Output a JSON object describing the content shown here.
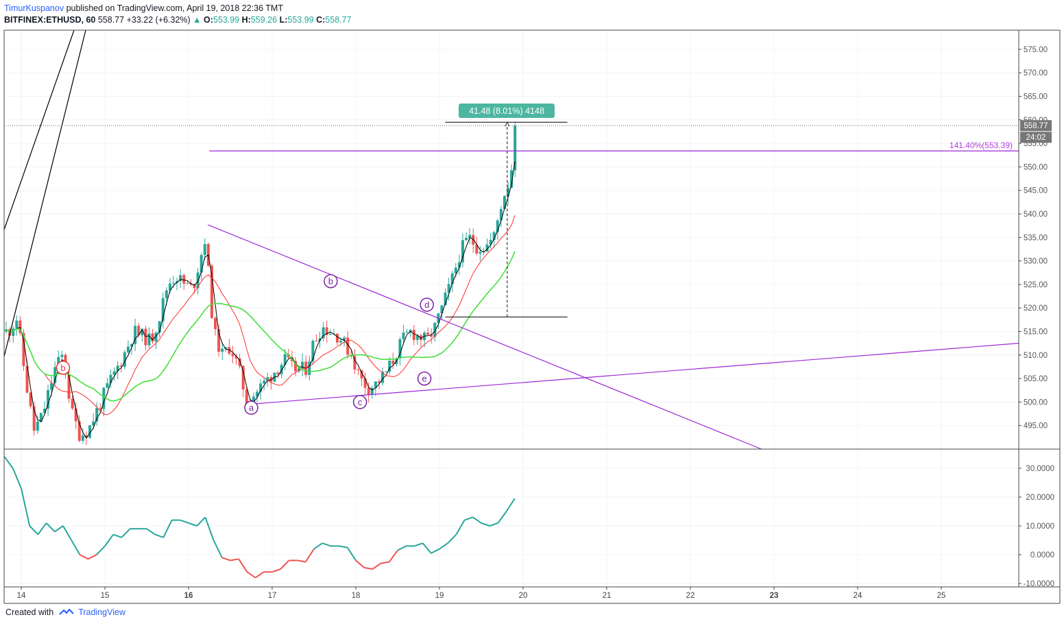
{
  "header": {
    "author": "TimurKuspanov",
    "published_text": "published on TradingView.com, April 19, 2018 22:36 TMT",
    "symbol": "BITFINEX:ETHUSD, 60",
    "last": "558.77",
    "change": "+33.22 (+6.32%)",
    "o_label": "O:",
    "o_value": "553.99",
    "h_label": "H:",
    "h_value": "559.26",
    "l_label": "L:",
    "l_value": "553.99",
    "c_label": "C:",
    "c_value": "558.77"
  },
  "footer": {
    "created_with": "Created with",
    "brand": "TradingView"
  },
  "colors": {
    "up": "#26a69a",
    "down": "#ef5350",
    "ma_fast": "#000000",
    "ma_mid": "#ff2a2a",
    "ma_slow": "#43e03d",
    "purple": "#9c27b0",
    "osc_up": "#26a69a",
    "osc_down": "#ef5350"
  },
  "annotations": {
    "measure_label": "41.48 (8.01%) 4148",
    "fib_label": "141.40%(553.39)",
    "price_badge": "558.77",
    "time_badge": "24:02",
    "waves": [
      {
        "text": "b",
        "color": "red"
      },
      {
        "text": "a",
        "color": "purple"
      },
      {
        "text": "b",
        "color": "purple"
      },
      {
        "text": "c",
        "color": "purple"
      },
      {
        "text": "d",
        "color": "purple"
      },
      {
        "text": "e",
        "color": "purple"
      }
    ]
  },
  "chart_data": [
    {
      "type": "candlestick",
      "title": "BITFINEX:ETHUSD, 60",
      "x_ticks": [
        "14",
        "15",
        "16",
        "17",
        "18",
        "19",
        "20",
        "21",
        "22",
        "23",
        "24",
        "25"
      ],
      "y_ticks": [
        "495.00",
        "500.00",
        "505.00",
        "510.00",
        "515.00",
        "520.00",
        "525.00",
        "530.00",
        "535.00",
        "540.00",
        "545.00",
        "550.00",
        "555.00",
        "560.00",
        "565.00",
        "570.00",
        "575.00"
      ],
      "ylim": [
        490.0,
        578.0
      ],
      "last_price": 558.77,
      "fib_level": {
        "label": "141.40%",
        "price": 553.39
      },
      "measure": {
        "from": 518.1,
        "to": 559.5,
        "change": 41.48,
        "percent": 8.01
      },
      "close_path": [
        {
          "day": 13.85,
          "close": 515
        },
        {
          "day": 13.95,
          "close": 518
        },
        {
          "day": 14.05,
          "close": 505
        },
        {
          "day": 14.15,
          "close": 494
        },
        {
          "day": 14.25,
          "close": 497
        },
        {
          "day": 14.4,
          "close": 507
        },
        {
          "day": 14.5,
          "close": 510
        },
        {
          "day": 14.6,
          "close": 498
        },
        {
          "day": 14.7,
          "close": 493
        },
        {
          "day": 14.8,
          "close": 494
        },
        {
          "day": 14.95,
          "close": 500
        },
        {
          "day": 15.05,
          "close": 504
        },
        {
          "day": 15.2,
          "close": 509
        },
        {
          "day": 15.35,
          "close": 515
        },
        {
          "day": 15.45,
          "close": 514
        },
        {
          "day": 15.55,
          "close": 513
        },
        {
          "day": 15.65,
          "close": 518
        },
        {
          "day": 15.75,
          "close": 525
        },
        {
          "day": 15.85,
          "close": 527
        },
        {
          "day": 15.95,
          "close": 525
        },
        {
          "day": 16.05,
          "close": 524
        },
        {
          "day": 16.2,
          "close": 535
        },
        {
          "day": 16.3,
          "close": 515
        },
        {
          "day": 16.4,
          "close": 510
        },
        {
          "day": 16.5,
          "close": 512
        },
        {
          "day": 16.6,
          "close": 507
        },
        {
          "day": 16.7,
          "close": 500
        },
        {
          "day": 16.8,
          "close": 502
        },
        {
          "day": 16.9,
          "close": 504
        },
        {
          "day": 17.05,
          "close": 507
        },
        {
          "day": 17.15,
          "close": 509
        },
        {
          "day": 17.25,
          "close": 507
        },
        {
          "day": 17.4,
          "close": 507
        },
        {
          "day": 17.5,
          "close": 513
        },
        {
          "day": 17.6,
          "close": 516
        },
        {
          "day": 17.7,
          "close": 515
        },
        {
          "day": 17.8,
          "close": 514
        },
        {
          "day": 17.95,
          "close": 510
        },
        {
          "day": 18.05,
          "close": 505
        },
        {
          "day": 18.15,
          "close": 503
        },
        {
          "day": 18.25,
          "close": 504
        },
        {
          "day": 18.35,
          "close": 506
        },
        {
          "day": 18.45,
          "close": 509
        },
        {
          "day": 18.55,
          "close": 513
        },
        {
          "day": 18.65,
          "close": 515
        },
        {
          "day": 18.75,
          "close": 514
        },
        {
          "day": 18.85,
          "close": 513
        },
        {
          "day": 18.95,
          "close": 516
        },
        {
          "day": 19.05,
          "close": 521
        },
        {
          "day": 19.15,
          "close": 526
        },
        {
          "day": 19.25,
          "close": 532
        },
        {
          "day": 19.35,
          "close": 535
        },
        {
          "day": 19.45,
          "close": 533
        },
        {
          "day": 19.55,
          "close": 533
        },
        {
          "day": 19.65,
          "close": 535
        },
        {
          "day": 19.75,
          "close": 543
        },
        {
          "day": 19.85,
          "close": 548
        },
        {
          "day": 19.92,
          "close": 558.77
        }
      ],
      "moving_averages": [
        {
          "name": "",
          "color": "black"
        },
        {
          "name": "",
          "color": "red"
        },
        {
          "name": "",
          "color": "green"
        }
      ]
    },
    {
      "type": "line",
      "title": "",
      "y_ticks": [
        "30.0000",
        "20.0000",
        "10.0000",
        "0.0000",
        "-10.0000"
      ],
      "ylim": [
        -11.0,
        35.0
      ],
      "series": [
        {
          "name": "",
          "points": [
            {
              "day": 13.8,
              "value": 34
            },
            {
              "day": 13.9,
              "value": 30
            },
            {
              "day": 14.0,
              "value": 23
            },
            {
              "day": 14.1,
              "value": 10
            },
            {
              "day": 14.2,
              "value": 7
            },
            {
              "day": 14.3,
              "value": 11
            },
            {
              "day": 14.4,
              "value": 8
            },
            {
              "day": 14.5,
              "value": 10
            },
            {
              "day": 14.6,
              "value": 5
            },
            {
              "day": 14.7,
              "value": 0
            },
            {
              "day": 14.8,
              "value": -1.5
            },
            {
              "day": 14.9,
              "value": 0
            },
            {
              "day": 15.0,
              "value": 3
            },
            {
              "day": 15.1,
              "value": 7
            },
            {
              "day": 15.2,
              "value": 6
            },
            {
              "day": 15.3,
              "value": 9
            },
            {
              "day": 15.4,
              "value": 9
            },
            {
              "day": 15.5,
              "value": 9
            },
            {
              "day": 15.6,
              "value": 7
            },
            {
              "day": 15.7,
              "value": 6
            },
            {
              "day": 15.8,
              "value": 12
            },
            {
              "day": 15.9,
              "value": 12
            },
            {
              "day": 16.0,
              "value": 11
            },
            {
              "day": 16.1,
              "value": 10
            },
            {
              "day": 16.2,
              "value": 13
            },
            {
              "day": 16.3,
              "value": 5
            },
            {
              "day": 16.4,
              "value": -1
            },
            {
              "day": 16.5,
              "value": -2
            },
            {
              "day": 16.6,
              "value": -1.5
            },
            {
              "day": 16.7,
              "value": -6
            },
            {
              "day": 16.8,
              "value": -8
            },
            {
              "day": 16.9,
              "value": -6
            },
            {
              "day": 17.0,
              "value": -6
            },
            {
              "day": 17.1,
              "value": -5
            },
            {
              "day": 17.2,
              "value": -2
            },
            {
              "day": 17.3,
              "value": -2
            },
            {
              "day": 17.4,
              "value": -2.5
            },
            {
              "day": 17.5,
              "value": 2
            },
            {
              "day": 17.6,
              "value": 4
            },
            {
              "day": 17.7,
              "value": 3
            },
            {
              "day": 17.8,
              "value": 3
            },
            {
              "day": 17.9,
              "value": 2.5
            },
            {
              "day": 18.0,
              "value": -2
            },
            {
              "day": 18.1,
              "value": -4.5
            },
            {
              "day": 18.2,
              "value": -5
            },
            {
              "day": 18.3,
              "value": -3
            },
            {
              "day": 18.4,
              "value": -2.5
            },
            {
              "day": 18.5,
              "value": 1.5
            },
            {
              "day": 18.6,
              "value": 3
            },
            {
              "day": 18.7,
              "value": 3
            },
            {
              "day": 18.8,
              "value": 4
            },
            {
              "day": 18.9,
              "value": 0.5
            },
            {
              "day": 19.0,
              "value": 2
            },
            {
              "day": 19.1,
              "value": 4
            },
            {
              "day": 19.2,
              "value": 7
            },
            {
              "day": 19.3,
              "value": 12
            },
            {
              "day": 19.4,
              "value": 13
            },
            {
              "day": 19.5,
              "value": 11
            },
            {
              "day": 19.6,
              "value": 10
            },
            {
              "day": 19.7,
              "value": 11
            },
            {
              "day": 19.8,
              "value": 15
            },
            {
              "day": 19.9,
              "value": 19.5
            }
          ]
        }
      ]
    }
  ]
}
